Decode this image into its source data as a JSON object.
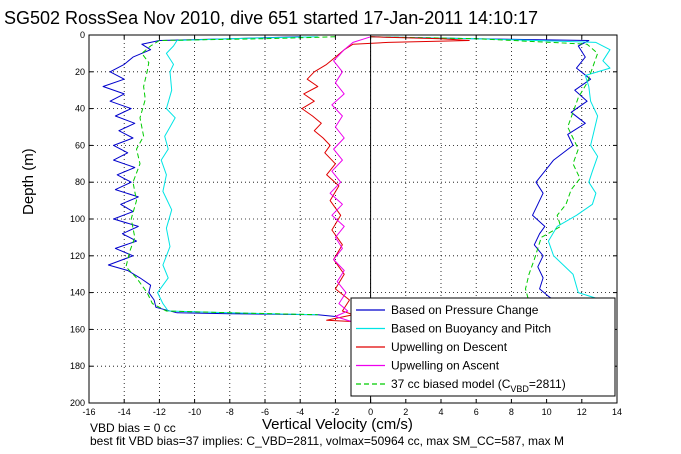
{
  "title": "SG502 RossSea Nov 2010, dive 651 started 17-Jan-2011 14:10:17",
  "notes": [
    "VBD bias = 0 cc",
    "best fit VBD bias=37 implies: C_VBD=2811, volmax=50964 cc, max SM_CC=587, max M"
  ],
  "colors": {
    "pressure": "#0000cc",
    "buoyancy": "#00e5e5",
    "descent": "#e00000",
    "ascent": "#ee00ee",
    "model": "#00cc00"
  },
  "chart_data": {
    "type": "line",
    "title": "SG502 RossSea Nov 2010, dive 651 started 17-Jan-2011 14:10:17",
    "xlabel": "Vertical Velocity (cm/s)",
    "ylabel": "Depth (m)",
    "xlim": [
      -16,
      14
    ],
    "ylim": [
      200,
      0
    ],
    "y_reversed": true,
    "grid": true,
    "legend_position": "bottom-right",
    "xticks": [
      -16,
      -14,
      -12,
      -10,
      -8,
      -6,
      -4,
      -2,
      0,
      2,
      4,
      6,
      8,
      10,
      12,
      14
    ],
    "yticks": [
      0,
      20,
      40,
      60,
      80,
      100,
      120,
      140,
      160,
      180,
      200
    ],
    "legend": [
      {
        "label": "Based on Pressure Change",
        "color": "#0000cc",
        "dash": "solid"
      },
      {
        "label": "Based on Buoyancy and Pitch",
        "color": "#00e5e5",
        "dash": "solid"
      },
      {
        "label": "Upwelling on Descent",
        "color": "#e00000",
        "dash": "solid"
      },
      {
        "label": "Upwelling on Ascent",
        "color": "#ee00ee",
        "dash": "solid"
      },
      {
        "label": "37 cc biased model (C",
        "sub": "VBD",
        "suffix": "=2811)",
        "color": "#00cc00",
        "dash": "dashed"
      }
    ],
    "series": [
      {
        "key": "pressure_descent",
        "color": "#0000cc",
        "dash": "solid",
        "points": [
          [
            -4,
            1
          ],
          [
            -8,
            2
          ],
          [
            -12,
            3
          ],
          [
            -13,
            5
          ],
          [
            -12.5,
            8
          ],
          [
            -13.5,
            12
          ],
          [
            -14,
            16
          ],
          [
            -14.8,
            20
          ],
          [
            -14,
            24
          ],
          [
            -15.2,
            28
          ],
          [
            -14,
            32
          ],
          [
            -14.8,
            36
          ],
          [
            -13.6,
            40
          ],
          [
            -14.5,
            44
          ],
          [
            -13.4,
            48
          ],
          [
            -14.3,
            52
          ],
          [
            -13.5,
            56
          ],
          [
            -14.6,
            60
          ],
          [
            -13.8,
            64
          ],
          [
            -14.6,
            68
          ],
          [
            -13.4,
            72
          ],
          [
            -14.4,
            76
          ],
          [
            -13.6,
            80
          ],
          [
            -14.5,
            84
          ],
          [
            -13.2,
            88
          ],
          [
            -14.2,
            92
          ],
          [
            -13.5,
            96
          ],
          [
            -14.6,
            100
          ],
          [
            -13.2,
            104
          ],
          [
            -14.1,
            108
          ],
          [
            -13.3,
            112
          ],
          [
            -14.5,
            116
          ],
          [
            -13.5,
            120
          ],
          [
            -14.9,
            125
          ],
          [
            -13.8,
            128
          ],
          [
            -13.1,
            132
          ],
          [
            -12.5,
            136
          ],
          [
            -12.6,
            140
          ],
          [
            -12.3,
            144
          ],
          [
            -12.2,
            148
          ],
          [
            -11,
            151
          ],
          [
            -8,
            151.5
          ],
          [
            -3,
            152
          ],
          [
            -2,
            153
          ]
        ]
      },
      {
        "key": "buoyancy_descent",
        "color": "#00e5e5",
        "dash": "solid",
        "points": [
          [
            -3,
            1
          ],
          [
            -8,
            2
          ],
          [
            -11,
            3
          ],
          [
            -11.2,
            6
          ],
          [
            -11.6,
            10
          ],
          [
            -11.2,
            16
          ],
          [
            -11.4,
            20
          ],
          [
            -11.3,
            30
          ],
          [
            -11.6,
            40
          ],
          [
            -11.1,
            45
          ],
          [
            -11.4,
            50
          ],
          [
            -11.7,
            55
          ],
          [
            -11.5,
            62
          ],
          [
            -11.9,
            68
          ],
          [
            -11.6,
            76
          ],
          [
            -11.8,
            85
          ],
          [
            -11.3,
            95
          ],
          [
            -11.6,
            105
          ],
          [
            -11.4,
            115
          ],
          [
            -11.8,
            125
          ],
          [
            -11.5,
            132
          ],
          [
            -12.1,
            140
          ],
          [
            -11.8,
            146
          ],
          [
            -11.5,
            150
          ],
          [
            -8,
            151
          ],
          [
            -3,
            152
          ]
        ]
      },
      {
        "key": "model_descent",
        "color": "#00cc00",
        "dash": "dashed",
        "points": [
          [
            -2,
            1
          ],
          [
            -6,
            2
          ],
          [
            -12,
            3
          ],
          [
            -12.5,
            6
          ],
          [
            -13,
            10
          ],
          [
            -12.6,
            15
          ],
          [
            -12.7,
            20
          ],
          [
            -12.9,
            28
          ],
          [
            -12.8,
            35
          ],
          [
            -13.1,
            45
          ],
          [
            -12.9,
            55
          ],
          [
            -13.3,
            62
          ],
          [
            -13.1,
            70
          ],
          [
            -13.5,
            80
          ],
          [
            -13.3,
            90
          ],
          [
            -13.6,
            100
          ],
          [
            -13.4,
            110
          ],
          [
            -13.7,
            118
          ],
          [
            -13.9,
            126
          ],
          [
            -13.3,
            132
          ],
          [
            -12.7,
            140
          ],
          [
            -12.4,
            146
          ],
          [
            -11.6,
            150
          ],
          [
            -8,
            151
          ],
          [
            -3,
            152
          ]
        ]
      },
      {
        "key": "pressure_ascent",
        "color": "#0000cc",
        "dash": "solid",
        "points": [
          [
            -1,
            156
          ],
          [
            2,
            152
          ],
          [
            7,
            151
          ],
          [
            10.3,
            150
          ],
          [
            10.7,
            146
          ],
          [
            10.1,
            142
          ],
          [
            9.6,
            138
          ],
          [
            9.8,
            132
          ],
          [
            9.5,
            126
          ],
          [
            9.8,
            120
          ],
          [
            9.3,
            114
          ],
          [
            9.6,
            108
          ],
          [
            9.9,
            104
          ],
          [
            9.2,
            98
          ],
          [
            9.5,
            92
          ],
          [
            9.8,
            86
          ],
          [
            9.4,
            80
          ],
          [
            9.9,
            74
          ],
          [
            10.4,
            68
          ],
          [
            11.5,
            60
          ],
          [
            11.2,
            54
          ],
          [
            12.2,
            48
          ],
          [
            11.4,
            42
          ],
          [
            12.3,
            36
          ],
          [
            11.6,
            30
          ],
          [
            12.5,
            24
          ],
          [
            11.7,
            18
          ],
          [
            12.2,
            12
          ],
          [
            11.8,
            6
          ],
          [
            12.4,
            3
          ],
          [
            6,
            2
          ],
          [
            0,
            1
          ]
        ]
      },
      {
        "key": "buoyancy_ascent",
        "color": "#00e5e5",
        "dash": "solid",
        "points": [
          [
            -1,
            156
          ],
          [
            4,
            151
          ],
          [
            12.8,
            143
          ],
          [
            11.8,
            140
          ],
          [
            11.5,
            130
          ],
          [
            10.4,
            120
          ],
          [
            10.1,
            112
          ],
          [
            10.6,
            104
          ],
          [
            11.7,
            98
          ],
          [
            12.6,
            92
          ],
          [
            12.8,
            86
          ],
          [
            12.4,
            80
          ],
          [
            12.6,
            74
          ],
          [
            12.9,
            66
          ],
          [
            12.5,
            60
          ],
          [
            12.7,
            52
          ],
          [
            12.9,
            44
          ],
          [
            12.5,
            36
          ],
          [
            12.4,
            28
          ],
          [
            12.2,
            22
          ],
          [
            13.6,
            18
          ],
          [
            13.2,
            14
          ],
          [
            13.6,
            8
          ],
          [
            12.8,
            4
          ],
          [
            6,
            2
          ],
          [
            0,
            1
          ]
        ]
      },
      {
        "key": "model_ascent",
        "color": "#00cc00",
        "dash": "dashed",
        "points": [
          [
            -1,
            156
          ],
          [
            3,
            152
          ],
          [
            8.5,
            150
          ],
          [
            9,
            145
          ],
          [
            8.8,
            138
          ],
          [
            9,
            130
          ],
          [
            9.3,
            122
          ],
          [
            9.5,
            116
          ],
          [
            9.7,
            110
          ],
          [
            10.8,
            104
          ],
          [
            10.6,
            98
          ],
          [
            11.1,
            92
          ],
          [
            11.4,
            84
          ],
          [
            11.9,
            78
          ],
          [
            11.5,
            70
          ],
          [
            11.8,
            62
          ],
          [
            11.5,
            56
          ],
          [
            11.2,
            50
          ],
          [
            11.5,
            42
          ],
          [
            11.8,
            34
          ],
          [
            12.3,
            26
          ],
          [
            12.6,
            18
          ],
          [
            12.9,
            10
          ],
          [
            12.3,
            5
          ],
          [
            6,
            2
          ],
          [
            0,
            1
          ]
        ]
      },
      {
        "key": "upwelling_descent",
        "color": "#e00000",
        "dash": "solid",
        "points": [
          [
            0,
            1
          ],
          [
            4,
            2
          ],
          [
            5.6,
            3
          ],
          [
            1,
            4
          ],
          [
            -1,
            5
          ],
          [
            -1.5,
            8
          ],
          [
            -2,
            12
          ],
          [
            -2.5,
            16
          ],
          [
            -3.2,
            20
          ],
          [
            -3.6,
            24
          ],
          [
            -3,
            28
          ],
          [
            -3.8,
            32
          ],
          [
            -3.2,
            36
          ],
          [
            -3.9,
            40
          ],
          [
            -3.3,
            44
          ],
          [
            -2.8,
            48
          ],
          [
            -3.2,
            52
          ],
          [
            -2.7,
            56
          ],
          [
            -2.3,
            60
          ],
          [
            -2.6,
            64
          ],
          [
            -2,
            70
          ],
          [
            -2.5,
            76
          ],
          [
            -1.8,
            82
          ],
          [
            -2.3,
            90
          ],
          [
            -1.7,
            98
          ],
          [
            -2.2,
            106
          ],
          [
            -1.6,
            114
          ],
          [
            -2.1,
            122
          ],
          [
            -1.5,
            130
          ],
          [
            -2,
            138
          ],
          [
            -1.2,
            144
          ],
          [
            -1.6,
            150
          ],
          [
            -1,
            152
          ],
          [
            -2.5,
            155
          ],
          [
            -0.5,
            156
          ]
        ]
      },
      {
        "key": "upwelling_ascent",
        "color": "#ee00ee",
        "dash": "solid",
        "points": [
          [
            -1,
            156
          ],
          [
            -2,
            153
          ],
          [
            -1.3,
            150
          ],
          [
            -1.8,
            146
          ],
          [
            -1.4,
            140
          ],
          [
            -1.9,
            134
          ],
          [
            -1.5,
            128
          ],
          [
            -2.1,
            122
          ],
          [
            -1.6,
            116
          ],
          [
            -2,
            110
          ],
          [
            -1.5,
            104
          ],
          [
            -2.2,
            98
          ],
          [
            -1.6,
            92
          ],
          [
            -2.3,
            86
          ],
          [
            -1.7,
            80
          ],
          [
            -2.2,
            74
          ],
          [
            -1.6,
            68
          ],
          [
            -2.1,
            62
          ],
          [
            -1.5,
            56
          ],
          [
            -2,
            50
          ],
          [
            -1.6,
            44
          ],
          [
            -2.2,
            38
          ],
          [
            -1.5,
            32
          ],
          [
            -2,
            26
          ],
          [
            -1.6,
            20
          ],
          [
            -2.1,
            14
          ],
          [
            -1.5,
            8
          ],
          [
            -1,
            4
          ],
          [
            0,
            1
          ]
        ]
      }
    ]
  }
}
